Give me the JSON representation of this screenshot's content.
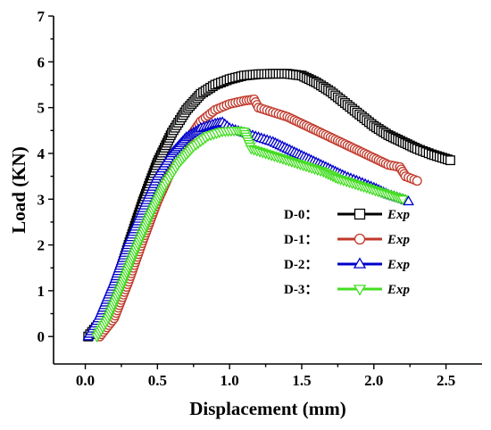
{
  "chart_data": {
    "type": "scatter",
    "xlabel": "Displacement (mm)",
    "ylabel": "Load (KN)",
    "xlim": [
      -0.22,
      2.75
    ],
    "ylim": [
      -0.6,
      7
    ],
    "xticks": [
      "0.0",
      "0.5",
      "1.0",
      "1.5",
      "2.0",
      "2.5"
    ],
    "xtick_values": [
      0,
      0.5,
      1.0,
      1.5,
      2.0,
      2.5
    ],
    "yticks": [
      "0",
      "1",
      "2",
      "3",
      "4",
      "5",
      "6",
      "7"
    ],
    "ytick_values": [
      0,
      1,
      2,
      3,
      4,
      5,
      6,
      7
    ],
    "grid": false,
    "legend_position": "lower-right",
    "series": [
      {
        "name": "D-0",
        "label": "Exp",
        "marker": "square",
        "color": "#000000",
        "x": [
          0.02,
          0.1,
          0.2,
          0.3,
          0.4,
          0.5,
          0.6,
          0.7,
          0.8,
          0.9,
          1.0,
          1.1,
          1.2,
          1.3,
          1.4,
          1.5,
          1.6,
          1.7,
          1.8,
          1.9,
          2.0,
          2.1,
          2.2,
          2.3,
          2.4,
          2.53
        ],
        "y": [
          0.0,
          0.3,
          1.0,
          2.0,
          2.95,
          3.8,
          4.45,
          4.95,
          5.3,
          5.5,
          5.62,
          5.7,
          5.73,
          5.74,
          5.74,
          5.7,
          5.55,
          5.35,
          5.1,
          4.85,
          4.6,
          4.4,
          4.25,
          4.1,
          3.98,
          3.85
        ]
      },
      {
        "name": "D-1",
        "label": "Exp",
        "marker": "circle",
        "color": "#c0392b",
        "x": [
          0.1,
          0.2,
          0.3,
          0.4,
          0.5,
          0.6,
          0.7,
          0.8,
          0.9,
          1.0,
          1.1,
          1.17,
          1.2,
          1.3,
          1.4,
          1.5,
          1.6,
          1.7,
          1.8,
          1.9,
          2.0,
          2.1,
          2.18,
          2.22,
          2.3
        ],
        "y": [
          0.0,
          0.4,
          1.2,
          2.1,
          2.95,
          3.65,
          4.25,
          4.7,
          4.95,
          5.08,
          5.15,
          5.18,
          5.0,
          4.9,
          4.8,
          4.65,
          4.5,
          4.35,
          4.2,
          4.05,
          3.9,
          3.75,
          3.7,
          3.5,
          3.4
        ]
      },
      {
        "name": "D-2",
        "label": "Exp",
        "marker": "triangle-up",
        "color": "#0000cc",
        "x": [
          0.02,
          0.1,
          0.2,
          0.3,
          0.4,
          0.5,
          0.6,
          0.7,
          0.8,
          0.9,
          0.95,
          1.0,
          1.1,
          1.2,
          1.3,
          1.4,
          1.5,
          1.6,
          1.7,
          1.8,
          1.9,
          2.0,
          2.1,
          2.2,
          2.24
        ],
        "y": [
          0.0,
          0.45,
          1.2,
          2.05,
          2.8,
          3.5,
          4.0,
          4.35,
          4.55,
          4.65,
          4.68,
          4.55,
          4.45,
          4.35,
          4.25,
          4.1,
          3.95,
          3.8,
          3.65,
          3.5,
          3.38,
          3.25,
          3.1,
          3.0,
          2.95
        ]
      },
      {
        "name": "D-3",
        "label": "Exp",
        "marker": "triangle-down",
        "color": "#44dd22",
        "x": [
          0.08,
          0.15,
          0.25,
          0.35,
          0.45,
          0.55,
          0.65,
          0.75,
          0.85,
          0.95,
          1.05,
          1.1,
          1.15,
          1.25,
          1.35,
          1.45,
          1.55,
          1.65,
          1.75,
          1.85,
          1.95,
          2.05,
          2.15,
          2.2
        ],
        "y": [
          0.0,
          0.35,
          1.1,
          1.9,
          2.65,
          3.3,
          3.8,
          4.15,
          4.38,
          4.48,
          4.5,
          4.48,
          4.1,
          4.0,
          3.9,
          3.8,
          3.7,
          3.6,
          3.45,
          3.35,
          3.25,
          3.15,
          3.05,
          3.0
        ]
      }
    ]
  }
}
